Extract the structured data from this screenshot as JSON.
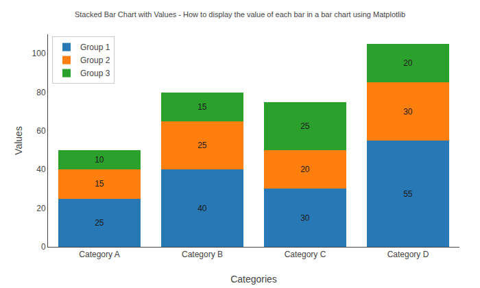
{
  "chart_data": {
    "type": "bar",
    "title": "Stacked Bar Chart with Values - How to display the value of each bar in a bar chart using Matplotlib",
    "xlabel": "Categories",
    "ylabel": "Values",
    "categories": [
      "Category A",
      "Category B",
      "Category C",
      "Category D"
    ],
    "series": [
      {
        "name": "Group 1",
        "color": "#2878b5",
        "values": [
          25,
          40,
          30,
          55
        ]
      },
      {
        "name": "Group 2",
        "color": "#ff7f0e",
        "values": [
          15,
          25,
          20,
          30
        ]
      },
      {
        "name": "Group 3",
        "color": "#2ca02c",
        "values": [
          10,
          15,
          25,
          20
        ]
      }
    ],
    "stacked": true,
    "data_labels": true,
    "ylim": [
      0,
      110
    ],
    "yticks": [
      0,
      20,
      40,
      60,
      80,
      100
    ],
    "grid": false,
    "legend": "upper left"
  }
}
